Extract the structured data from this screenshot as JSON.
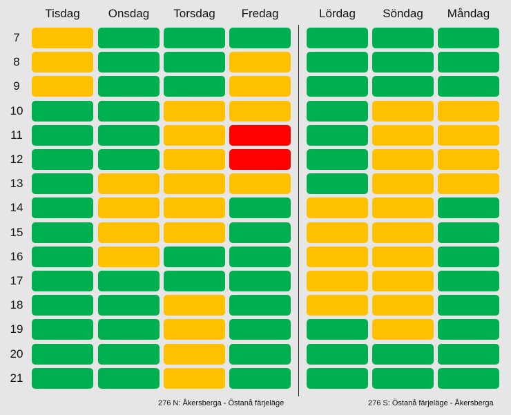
{
  "chart_data": {
    "type": "heatmap",
    "groups": [
      {
        "days": [
          "Tisdag",
          "Onsdag",
          "Torsdag",
          "Fredag"
        ],
        "caption": "276 N: Åkersberga - Östanå färjeläge",
        "grid": [
          [
            "yellow",
            "green",
            "green",
            "green"
          ],
          [
            "yellow",
            "green",
            "green",
            "yellow"
          ],
          [
            "yellow",
            "green",
            "green",
            "yellow"
          ],
          [
            "green",
            "green",
            "yellow",
            "yellow"
          ],
          [
            "green",
            "green",
            "yellow",
            "red"
          ],
          [
            "green",
            "green",
            "yellow",
            "red"
          ],
          [
            "green",
            "yellow",
            "yellow",
            "yellow"
          ],
          [
            "green",
            "yellow",
            "yellow",
            "green"
          ],
          [
            "green",
            "yellow",
            "yellow",
            "green"
          ],
          [
            "green",
            "yellow",
            "green",
            "green"
          ],
          [
            "green",
            "green",
            "green",
            "green"
          ],
          [
            "green",
            "green",
            "yellow",
            "green"
          ],
          [
            "green",
            "green",
            "yellow",
            "green"
          ],
          [
            "green",
            "green",
            "yellow",
            "green"
          ],
          [
            "green",
            "green",
            "yellow",
            "green"
          ]
        ]
      },
      {
        "days": [
          "Lördag",
          "Söndag",
          "Måndag"
        ],
        "caption": "276 S: Östanå färjeläge - Åkersberga",
        "grid": [
          [
            "green",
            "green",
            "green"
          ],
          [
            "green",
            "green",
            "green"
          ],
          [
            "green",
            "green",
            "green"
          ],
          [
            "green",
            "yellow",
            "yellow"
          ],
          [
            "green",
            "yellow",
            "yellow"
          ],
          [
            "green",
            "yellow",
            "yellow"
          ],
          [
            "green",
            "yellow",
            "yellow"
          ],
          [
            "yellow",
            "yellow",
            "green"
          ],
          [
            "yellow",
            "yellow",
            "green"
          ],
          [
            "yellow",
            "yellow",
            "green"
          ],
          [
            "yellow",
            "yellow",
            "green"
          ],
          [
            "yellow",
            "yellow",
            "green"
          ],
          [
            "green",
            "yellow",
            "green"
          ],
          [
            "green",
            "green",
            "green"
          ],
          [
            "green",
            "green",
            "green"
          ]
        ]
      }
    ],
    "hours": [
      "7",
      "8",
      "9",
      "10",
      "11",
      "12",
      "13",
      "14",
      "15",
      "16",
      "17",
      "18",
      "19",
      "20",
      "21"
    ],
    "colors": {
      "green": "#00b050",
      "yellow": "#ffc000",
      "red": "#ff0000"
    },
    "background": "#e6e6e6"
  }
}
